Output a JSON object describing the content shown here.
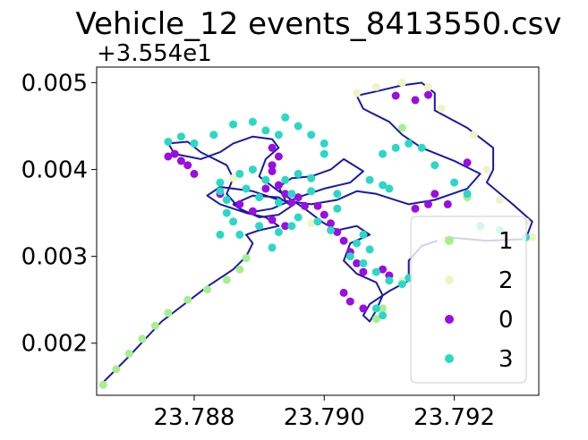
{
  "chart_data": {
    "type": "scatter",
    "title": "Vehicle_12 events_8413550.csv",
    "xlabel": "",
    "ylabel": "",
    "y_offset_label": "+3.554e1",
    "xlim": [
      23.7865,
      23.7933
    ],
    "ylim": [
      0.0014,
      0.00518
    ],
    "x_ticks": [
      23.788,
      23.79,
      23.792
    ],
    "x_tick_labels": [
      "23.788",
      "23.790",
      "23.792"
    ],
    "y_ticks": [
      0.002,
      0.003,
      0.004,
      0.005
    ],
    "y_tick_labels": [
      "0.002",
      "0.003",
      "0.004",
      "0.005"
    ],
    "grid": false,
    "legend_position": "lower-right",
    "track_color": "#1a1aa6",
    "route": [
      [
        23.7866,
        0.00155
      ],
      [
        23.787,
        0.00185
      ],
      [
        23.7875,
        0.00225
      ],
      [
        23.7882,
        0.00265
      ],
      [
        23.7886,
        0.00285
      ],
      [
        23.7888,
        0.003
      ],
      [
        23.7889,
        0.00315
      ],
      [
        23.7888,
        0.00325
      ],
      [
        23.789,
        0.0033
      ],
      [
        23.7893,
        0.00335
      ],
      [
        23.7891,
        0.00345
      ],
      [
        23.7888,
        0.0035
      ],
      [
        23.7884,
        0.0036
      ],
      [
        23.7882,
        0.0037
      ],
      [
        23.7884,
        0.0038
      ],
      [
        23.7889,
        0.00375
      ],
      [
        23.7893,
        0.00365
      ],
      [
        23.7898,
        0.0036
      ],
      [
        23.7902,
        0.00365
      ],
      [
        23.7905,
        0.00375
      ],
      [
        23.7908,
        0.00372
      ],
      [
        23.7913,
        0.0036
      ],
      [
        23.7917,
        0.00365
      ],
      [
        23.7922,
        0.00378
      ],
      [
        23.7924,
        0.00395
      ],
      [
        23.792,
        0.0041
      ],
      [
        23.7915,
        0.00425
      ],
      [
        23.7912,
        0.0044
      ],
      [
        23.791,
        0.00455
      ],
      [
        23.7906,
        0.0047
      ],
      [
        23.7905,
        0.00485
      ],
      [
        23.7908,
        0.0049
      ],
      [
        23.7912,
        0.00497
      ],
      [
        23.7915,
        0.005
      ],
      [
        23.7917,
        0.00488
      ],
      [
        23.7917,
        0.00468
      ],
      [
        23.7922,
        0.00448
      ],
      [
        23.7926,
        0.00425
      ],
      [
        23.7926,
        0.004
      ],
      [
        23.7925,
        0.00385
      ],
      [
        23.7929,
        0.0036
      ],
      [
        23.7932,
        0.0034
      ],
      [
        23.7931,
        0.0032
      ],
      [
        23.7925,
        0.00318
      ],
      [
        23.7919,
        0.00322
      ],
      [
        23.7915,
        0.00312
      ],
      [
        23.7913,
        0.00295
      ],
      [
        23.7913,
        0.00272
      ],
      [
        23.791,
        0.0026
      ],
      [
        23.7907,
        0.00245
      ],
      [
        23.7906,
        0.00232
      ],
      [
        23.7907,
        0.00225
      ],
      [
        23.7908,
        0.00238
      ],
      [
        23.7909,
        0.00255
      ],
      [
        23.7908,
        0.0027
      ],
      [
        23.7905,
        0.0028
      ],
      [
        23.7903,
        0.00295
      ],
      [
        23.7904,
        0.00315
      ],
      [
        23.7907,
        0.00325
      ],
      [
        23.7905,
        0.00335
      ],
      [
        23.7902,
        0.0033
      ],
      [
        23.79,
        0.00338
      ],
      [
        23.7897,
        0.00355
      ],
      [
        23.7893,
        0.00375
      ],
      [
        23.789,
        0.00392
      ],
      [
        23.7891,
        0.00412
      ],
      [
        23.7893,
        0.00425
      ],
      [
        23.7892,
        0.00435
      ],
      [
        23.7889,
        0.00438
      ],
      [
        23.7886,
        0.0043
      ],
      [
        23.7884,
        0.0042
      ],
      [
        23.7881,
        0.00412
      ],
      [
        23.7877,
        0.00418
      ],
      [
        23.7876,
        0.0043
      ],
      [
        23.7879,
        0.00432
      ],
      [
        23.7881,
        0.0042
      ],
      [
        23.7885,
        0.00405
      ],
      [
        23.7886,
        0.0039
      ],
      [
        23.7885,
        0.00372
      ],
      [
        23.7887,
        0.00355
      ],
      [
        23.789,
        0.00345
      ],
      [
        23.7893,
        0.00348
      ],
      [
        23.7895,
        0.00358
      ],
      [
        23.7893,
        0.00368
      ],
      [
        23.7889,
        0.0037
      ],
      [
        23.7886,
        0.0036
      ],
      [
        23.7888,
        0.0035
      ],
      [
        23.7892,
        0.00355
      ],
      [
        23.7896,
        0.00368
      ],
      [
        23.79,
        0.00378
      ],
      [
        23.7904,
        0.00385
      ],
      [
        23.7906,
        0.00398
      ],
      [
        23.7903,
        0.00412
      ],
      [
        23.7901,
        0.004
      ],
      [
        23.7898,
        0.00392
      ],
      [
        23.7895,
        0.0039
      ],
      [
        23.7893,
        0.0038
      ],
      [
        23.7894,
        0.00365
      ]
    ],
    "series": [
      {
        "name": "1",
        "color": "#a6ef8f",
        "points": [
          [
            23.7866,
            0.00152
          ],
          [
            23.7868,
            0.0017
          ],
          [
            23.787,
            0.00188
          ],
          [
            23.7872,
            0.00205
          ],
          [
            23.7874,
            0.0022
          ],
          [
            23.7876,
            0.00235
          ],
          [
            23.7879,
            0.0025
          ],
          [
            23.7882,
            0.00262
          ],
          [
            23.7885,
            0.00273
          ],
          [
            23.7887,
            0.00285
          ],
          [
            23.7888,
            0.00298
          ],
          [
            23.7908,
            0.00228
          ],
          [
            23.7909,
            0.0024
          ],
          [
            23.7912,
            0.00448
          ],
          [
            23.7922,
            0.00368
          ]
        ]
      },
      {
        "name": "2",
        "color": "#eef5c5",
        "points": [
          [
            23.7905,
            0.00488
          ],
          [
            23.7908,
            0.00495
          ],
          [
            23.7912,
            0.005
          ],
          [
            23.7916,
            0.00495
          ],
          [
            23.7918,
            0.0047
          ],
          [
            23.7923,
            0.0044
          ],
          [
            23.7925,
            0.004
          ],
          [
            23.7927,
            0.00365
          ],
          [
            23.7931,
            0.0034
          ],
          [
            23.7932,
            0.00322
          ],
          [
            23.7924,
            0.0033
          ],
          [
            23.7918,
            0.00318
          ],
          [
            23.7912,
            0.00272
          ],
          [
            23.7898,
            0.00338
          ],
          [
            23.7886,
            0.0039
          ]
        ]
      },
      {
        "name": "0",
        "color": "#9b0de0",
        "points": [
          [
            23.7876,
            0.00415
          ],
          [
            23.7877,
            0.00418
          ],
          [
            23.7879,
            0.00405
          ],
          [
            23.788,
            0.00395
          ],
          [
            23.7878,
            0.0041
          ],
          [
            23.7884,
            0.00372
          ],
          [
            23.7887,
            0.0036
          ],
          [
            23.7889,
            0.00352
          ],
          [
            23.7892,
            0.00342
          ],
          [
            23.7894,
            0.00335
          ],
          [
            23.7891,
            0.00378
          ],
          [
            23.7892,
            0.00398
          ],
          [
            23.7893,
            0.00382
          ],
          [
            23.7894,
            0.00372
          ],
          [
            23.7895,
            0.00362
          ],
          [
            23.7896,
            0.00368
          ],
          [
            23.7897,
            0.00358
          ],
          [
            23.7899,
            0.00358
          ],
          [
            23.79,
            0.00348
          ],
          [
            23.7901,
            0.00338
          ],
          [
            23.7902,
            0.00328
          ],
          [
            23.7903,
            0.00318
          ],
          [
            23.7904,
            0.00305
          ],
          [
            23.7905,
            0.00292
          ],
          [
            23.7906,
            0.00282
          ],
          [
            23.7909,
            0.00285
          ],
          [
            23.791,
            0.00278
          ],
          [
            23.7904,
            0.00248
          ],
          [
            23.7906,
            0.0024
          ],
          [
            23.7903,
            0.00258
          ],
          [
            23.7914,
            0.00355
          ],
          [
            23.7916,
            0.0036
          ],
          [
            23.7917,
            0.00372
          ],
          [
            23.7919,
            0.0036
          ],
          [
            23.7914,
            0.0048
          ],
          [
            23.7916,
            0.00486
          ],
          [
            23.7911,
            0.00485
          ],
          [
            23.7922,
            0.00408
          ],
          [
            23.7892,
            0.00425
          ],
          [
            23.7893,
            0.00415
          ],
          [
            23.7892,
            0.00405
          ]
        ]
      },
      {
        "name": "3",
        "color": "#2ad8c6",
        "points": [
          [
            23.7876,
            0.00432
          ],
          [
            23.7878,
            0.00438
          ],
          [
            23.788,
            0.0043
          ],
          [
            23.7883,
            0.0044
          ],
          [
            23.7886,
            0.00452
          ],
          [
            23.7889,
            0.00455
          ],
          [
            23.7891,
            0.00445
          ],
          [
            23.7893,
            0.0044
          ],
          [
            23.7894,
            0.0046
          ],
          [
            23.7896,
            0.0045
          ],
          [
            23.7898,
            0.0044
          ],
          [
            23.79,
            0.0043
          ],
          [
            23.79,
            0.00418
          ],
          [
            23.7884,
            0.00385
          ],
          [
            23.7884,
            0.00375
          ],
          [
            23.7885,
            0.00365
          ],
          [
            23.7885,
            0.0035
          ],
          [
            23.7886,
            0.0034
          ],
          [
            23.7884,
            0.00325
          ],
          [
            23.7887,
            0.00325
          ],
          [
            23.789,
            0.00335
          ],
          [
            23.7893,
            0.00328
          ],
          [
            23.7895,
            0.00335
          ],
          [
            23.7892,
            0.0031
          ],
          [
            23.789,
            0.00368
          ],
          [
            23.7888,
            0.00378
          ],
          [
            23.7887,
            0.00395
          ],
          [
            23.7889,
            0.004
          ],
          [
            23.7891,
            0.00388
          ],
          [
            23.7894,
            0.00388
          ],
          [
            23.7896,
            0.00395
          ],
          [
            23.7898,
            0.0039
          ],
          [
            23.7895,
            0.00372
          ],
          [
            23.7893,
            0.00362
          ],
          [
            23.7898,
            0.00375
          ],
          [
            23.7902,
            0.00372
          ],
          [
            23.7902,
            0.00355
          ],
          [
            23.7905,
            0.00315
          ],
          [
            23.7906,
            0.00325
          ],
          [
            23.7907,
            0.00308
          ],
          [
            23.7904,
            0.003
          ],
          [
            23.7906,
            0.00292
          ],
          [
            23.7908,
            0.00282
          ],
          [
            23.791,
            0.00272
          ],
          [
            23.7912,
            0.00268
          ],
          [
            23.7913,
            0.00275
          ],
          [
            23.7908,
            0.0024
          ],
          [
            23.7909,
            0.00232
          ],
          [
            23.7907,
            0.00388
          ],
          [
            23.7909,
            0.00382
          ],
          [
            23.791,
            0.00378
          ],
          [
            23.7909,
            0.00418
          ],
          [
            23.7911,
            0.00425
          ],
          [
            23.7913,
            0.0043
          ],
          [
            23.7915,
            0.00425
          ],
          [
            23.7917,
            0.00405
          ],
          [
            23.792,
            0.00385
          ],
          [
            23.7922,
            0.00372
          ],
          [
            23.7924,
            0.00335
          ],
          [
            23.7927,
            0.0033
          ],
          [
            23.7931,
            0.00322
          ],
          [
            23.7901,
            0.0033
          ],
          [
            23.7899,
            0.0034
          ],
          [
            23.7896,
            0.00345
          ]
        ]
      }
    ],
    "legend": [
      {
        "name": "1",
        "color": "#a6ef8f"
      },
      {
        "name": "2",
        "color": "#eef5c5"
      },
      {
        "name": "0",
        "color": "#9b0de0"
      },
      {
        "name": "3",
        "color": "#2ad8c6"
      }
    ]
  }
}
